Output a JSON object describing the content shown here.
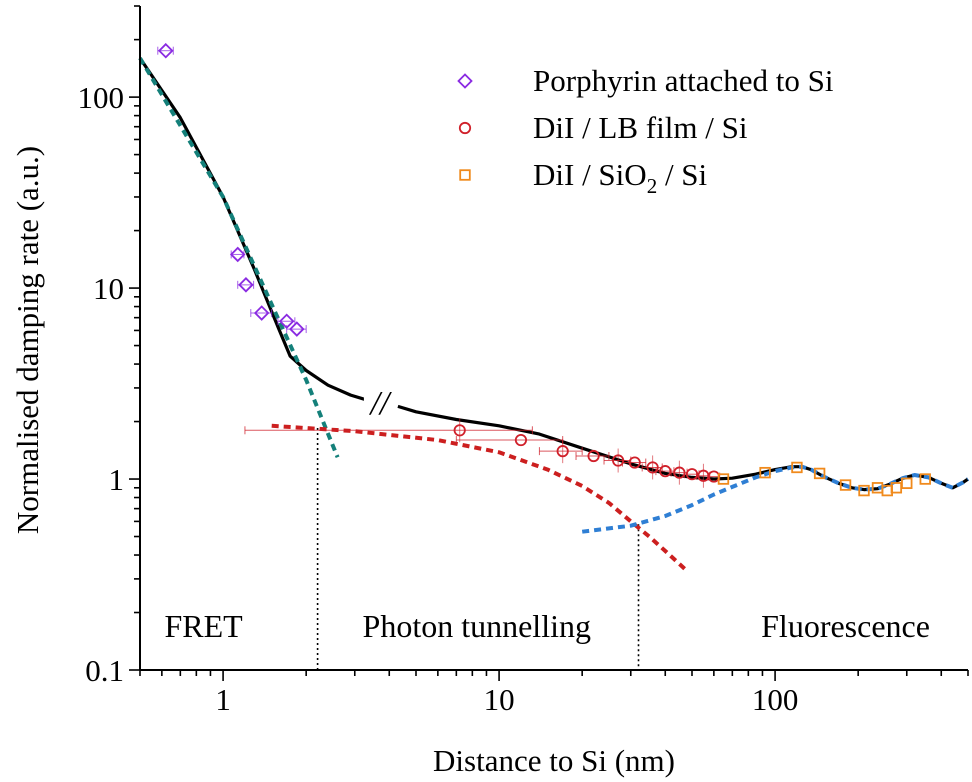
{
  "chart_data": {
    "type": "scatter",
    "xscale": "log",
    "yscale": "log",
    "xlim": [
      0.5,
      500
    ],
    "ylim": [
      0.1,
      300
    ],
    "xlabel": "Distance to Si (nm)",
    "ylabel": "Normalised damping rate (a.u.)",
    "xticks": [
      {
        "value": 1,
        "label": "1"
      },
      {
        "value": 10,
        "label": "10"
      },
      {
        "value": 100,
        "label": "100"
      }
    ],
    "yticks": [
      {
        "value": 0.1,
        "label": "0.1"
      },
      {
        "value": 1,
        "label": "1"
      },
      {
        "value": 10,
        "label": "10"
      },
      {
        "value": 100,
        "label": "100"
      }
    ],
    "legend": {
      "position": "top-right",
      "entries": [
        {
          "label": "Porphyrin attached to Si",
          "marker": "diamond",
          "color": "#8a2be2"
        },
        {
          "label": "DiI / LB film / Si",
          "marker": "circle",
          "color": "#d0202a"
        },
        {
          "label_main": "DiI / SiO",
          "label_sub": "2",
          "label_tail": " / Si",
          "marker": "square",
          "color": "#f08a1c"
        }
      ]
    },
    "series": [
      {
        "name": "Porphyrin attached to Si",
        "marker": "diamond",
        "color": "#8a2be2",
        "x": [
          0.62,
          1.13,
          1.21,
          1.38,
          1.7,
          1.85
        ],
        "y": [
          175,
          15,
          10.4,
          7.4,
          6.7,
          6.1
        ],
        "xerr": [
          0.04,
          0.06,
          0.08,
          0.12,
          0.12,
          0.15
        ]
      },
      {
        "name": "DiI / LB film / Si",
        "marker": "circle",
        "color": "#d0202a",
        "x": [
          7.2,
          12,
          17,
          22,
          27,
          31,
          36,
          40,
          45,
          50,
          55,
          60
        ],
        "y": [
          1.8,
          1.6,
          1.4,
          1.32,
          1.25,
          1.22,
          1.15,
          1.1,
          1.08,
          1.06,
          1.04,
          1.03
        ],
        "xerr": [
          6,
          5,
          3,
          3,
          3,
          3,
          3,
          3,
          3,
          3,
          3,
          3
        ]
      },
      {
        "name": "DiI / SiO2 / Si",
        "marker": "square",
        "color": "#f08a1c",
        "x": [
          65,
          92,
          120,
          145,
          180,
          210,
          235,
          255,
          275,
          300,
          350
        ],
        "y": [
          1.0,
          1.08,
          1.15,
          1.07,
          0.93,
          0.87,
          0.9,
          0.87,
          0.9,
          0.95,
          1.0
        ]
      }
    ],
    "curves": [
      {
        "name": "total",
        "style": "solid",
        "color": "#000000",
        "segments": [
          {
            "x": [
              0.5,
              0.7,
              1.0,
              1.3,
              1.6,
              1.75,
              2.0,
              2.4,
              2.9,
              3.3
            ],
            "y": [
              160,
              78,
              30,
              12.5,
              6.0,
              4.4,
              3.7,
              3.1,
              2.75,
              2.6
            ]
          },
          {
            "x": [
              4.3,
              5,
              7,
              10,
              14,
              20,
              30,
              40,
              50,
              60,
              70,
              85,
              100,
              115,
              125,
              135,
              150,
              170,
              190,
              210,
              235,
              260,
              290,
              320,
              360,
              400,
              440,
              480,
              500
            ],
            "y": [
              2.4,
              2.25,
              2.05,
              1.9,
              1.72,
              1.45,
              1.2,
              1.07,
              1.02,
              1.0,
              1.01,
              1.06,
              1.12,
              1.16,
              1.16,
              1.12,
              1.03,
              0.95,
              0.9,
              0.88,
              0.89,
              0.94,
              1.01,
              1.05,
              1.02,
              0.95,
              0.9,
              0.96,
              1.0
            ]
          }
        ]
      },
      {
        "name": "FRET",
        "style": "dotted",
        "color": "#14807a",
        "segments": [
          {
            "x": [
              0.5,
              1.0,
              1.5,
              2.0,
              2.6
            ],
            "y": [
              160,
              30,
              8.2,
              3.3,
              1.3
            ]
          }
        ]
      },
      {
        "name": "Photon tunnelling",
        "style": "dotted",
        "color": "#cc1f1f",
        "segments": [
          {
            "x": [
              1.5,
              3,
              6,
              10,
              15,
              20,
              25,
              30,
              35,
              40,
              48
            ],
            "y": [
              1.9,
              1.78,
              1.6,
              1.38,
              1.12,
              0.92,
              0.75,
              0.6,
              0.5,
              0.42,
              0.33
            ]
          }
        ]
      },
      {
        "name": "Fluorescence",
        "style": "dotted",
        "color": "#2f7fd4",
        "segments": [
          {
            "x": [
              20,
              30,
              40,
              50,
              60,
              70,
              85,
              100,
              115,
              125,
              135,
              150,
              170,
              190,
              210,
              235,
              260,
              290,
              320,
              360,
              400,
              440,
              480,
              500
            ],
            "y": [
              0.53,
              0.57,
              0.64,
              0.73,
              0.83,
              0.91,
              1.02,
              1.1,
              1.15,
              1.16,
              1.12,
              1.03,
              0.95,
              0.9,
              0.88,
              0.89,
              0.94,
              1.01,
              1.05,
              1.02,
              0.95,
              0.9,
              0.96,
              1.0
            ]
          }
        ]
      }
    ],
    "crossovers": [
      {
        "x": 2.2,
        "y": 1.85
      },
      {
        "x": 32,
        "y": 0.58
      }
    ],
    "axis_break": {
      "x": 3.7,
      "y": 2.5,
      "label": "//"
    },
    "region_labels": [
      {
        "label": "FRET",
        "x": 0.85
      },
      {
        "label": "Photon tunnelling",
        "x": 8.3
      },
      {
        "label": "Fluorescence",
        "x": 180
      }
    ],
    "grid": false
  }
}
